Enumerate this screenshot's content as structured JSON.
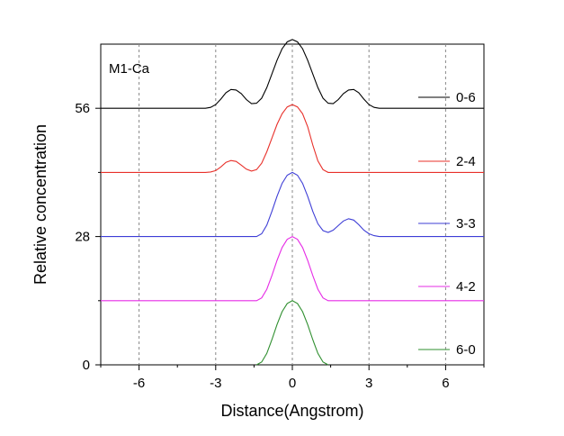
{
  "chart_data": {
    "type": "line",
    "panel_label": "M1-Ca",
    "xlabel": "Distance(Angstrom)",
    "ylabel": "Relative concentration",
    "xlim": [
      -7.5,
      7.5
    ],
    "ylim": [
      0,
      70
    ],
    "x_ticks": [
      -6,
      -3,
      0,
      3,
      6
    ],
    "x_tick_labels": [
      "-6",
      "-3",
      "0",
      "3",
      "6"
    ],
    "y_ticks": [
      0,
      28,
      56
    ],
    "y_tick_labels": [
      "0",
      "28",
      "56"
    ],
    "grid": "vertical dashed at x ticks",
    "legend_position": "right",
    "series": [
      {
        "name": "0-6",
        "color": "#000000",
        "baseline": 56,
        "x": [
          -7.5,
          -3.4,
          -3.2,
          -3.0,
          -2.8,
          -2.6,
          -2.4,
          -2.2,
          -2.0,
          -1.8,
          -1.6,
          -1.4,
          -1.2,
          -1.0,
          -0.8,
          -0.6,
          -0.4,
          -0.2,
          0.0,
          0.2,
          0.4,
          0.6,
          0.8,
          1.0,
          1.2,
          1.4,
          1.6,
          1.8,
          2.0,
          2.2,
          2.4,
          2.6,
          2.8,
          3.0,
          3.2,
          3.4,
          7.5
        ],
        "values": [
          56,
          56,
          56.2,
          56.8,
          58.0,
          59.4,
          60.1,
          60.0,
          59.2,
          57.9,
          57.0,
          57.1,
          58.2,
          60.5,
          63.5,
          66.5,
          69.0,
          70.5,
          71.0,
          70.5,
          69.0,
          66.5,
          63.5,
          60.5,
          58.2,
          57.1,
          57.0,
          57.9,
          59.2,
          60.0,
          60.1,
          59.4,
          58.0,
          56.8,
          56.2,
          56,
          56
        ]
      },
      {
        "name": "2-4",
        "color": "#e8302a",
        "baseline": 42,
        "x": [
          -7.5,
          -3.4,
          -3.2,
          -3.0,
          -2.8,
          -2.6,
          -2.4,
          -2.2,
          -2.0,
          -1.8,
          -1.6,
          -1.4,
          -1.2,
          -1.0,
          -0.8,
          -0.6,
          -0.4,
          -0.2,
          0.0,
          0.2,
          0.4,
          0.6,
          0.8,
          1.0,
          1.2,
          1.4,
          7.5
        ],
        "values": [
          42,
          42,
          42.1,
          42.4,
          43.2,
          44.2,
          44.6,
          44.4,
          43.6,
          42.7,
          42.3,
          42.6,
          44.0,
          46.5,
          49.5,
          52.5,
          54.8,
          56.3,
          56.8,
          56.3,
          54.8,
          52.0,
          48.0,
          44.5,
          42.6,
          42,
          42
        ]
      },
      {
        "name": "3-3",
        "color": "#3e3ed6",
        "baseline": 28,
        "x": [
          -7.5,
          -1.4,
          -1.2,
          -1.0,
          -0.8,
          -0.6,
          -0.4,
          -0.2,
          0.0,
          0.2,
          0.4,
          0.6,
          0.8,
          1.0,
          1.2,
          1.4,
          1.6,
          1.8,
          2.0,
          2.2,
          2.4,
          2.6,
          2.8,
          3.0,
          3.2,
          3.4,
          7.5
        ],
        "values": [
          28,
          28,
          28.6,
          30.5,
          33.5,
          36.8,
          39.6,
          41.4,
          42.0,
          41.4,
          39.6,
          36.8,
          33.5,
          30.8,
          29.3,
          28.9,
          29.4,
          30.4,
          31.4,
          31.9,
          31.6,
          30.6,
          29.4,
          28.6,
          28.2,
          28,
          28
        ]
      },
      {
        "name": "4-2",
        "color": "#e62ce6",
        "baseline": 14,
        "x": [
          -7.5,
          -1.4,
          -1.2,
          -1.0,
          -0.8,
          -0.6,
          -0.4,
          -0.2,
          0.0,
          0.2,
          0.4,
          0.6,
          0.8,
          1.0,
          1.2,
          1.4,
          7.5
        ],
        "values": [
          14,
          14,
          14.6,
          16.5,
          19.5,
          22.8,
          25.6,
          27.4,
          28.0,
          27.4,
          25.6,
          22.8,
          19.5,
          16.5,
          14.6,
          14,
          14
        ]
      },
      {
        "name": "6-0",
        "color": "#2f8f2f",
        "baseline": 0,
        "x": [
          -1.4,
          -1.2,
          -1.0,
          -0.8,
          -0.6,
          -0.4,
          -0.2,
          0.0,
          0.2,
          0.4,
          0.6,
          0.8,
          1.0,
          1.2,
          1.4
        ],
        "values": [
          0,
          0.6,
          2.5,
          5.5,
          8.8,
          11.6,
          13.4,
          14.0,
          13.4,
          11.6,
          8.8,
          5.5,
          2.5,
          0.6,
          0
        ]
      }
    ]
  }
}
